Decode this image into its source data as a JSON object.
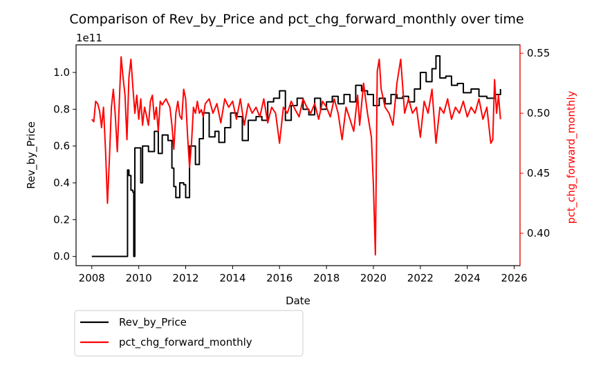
{
  "chart_data": {
    "type": "line",
    "title": "Comparison of Rev_by_Price and pct_chg_forward_monthly over time",
    "xlabel": "Date",
    "ylabel_left": "Rev_by_Price",
    "ylabel_right": "pct_chg_forward_monthly",
    "left_offset_text": "1e11",
    "xlim": [
      "2007-05-01",
      "2026-04-01"
    ],
    "ylim_left": [
      -0.05,
      1.15
    ],
    "ylim_right": [
      0.373,
      0.557
    ],
    "x_ticks": [
      "2008",
      "2010",
      "2012",
      "2014",
      "2016",
      "2018",
      "2020",
      "2022",
      "2024",
      "2026"
    ],
    "y_ticks_left": [
      "0.0",
      "0.2",
      "0.4",
      "0.6",
      "0.8",
      "1.0"
    ],
    "y_ticks_right": [
      "0.40",
      "0.45",
      "0.50",
      "0.55"
    ],
    "grid": false,
    "legend_position": "below-left",
    "series": [
      {
        "name": "Rev_by_Price",
        "axis": "left",
        "color": "#000000",
        "style": "steps",
        "points": [
          [
            "2008-01-01",
            0.0
          ],
          [
            "2009-07-01",
            0.0
          ],
          [
            "2009-07-10",
            0.47
          ],
          [
            "2009-08-01",
            0.44
          ],
          [
            "2009-09-01",
            0.36
          ],
          [
            "2009-10-01",
            0.35
          ],
          [
            "2009-10-15",
            0.0
          ],
          [
            "2009-11-01",
            0.59
          ],
          [
            "2010-01-01",
            0.59
          ],
          [
            "2010-02-01",
            0.4
          ],
          [
            "2010-03-01",
            0.6
          ],
          [
            "2010-06-01",
            0.57
          ],
          [
            "2010-09-01",
            0.68
          ],
          [
            "2010-11-01",
            0.56
          ],
          [
            "2011-01-01",
            0.66
          ],
          [
            "2011-04-01",
            0.63
          ],
          [
            "2011-06-01",
            0.48
          ],
          [
            "2011-07-01",
            0.38
          ],
          [
            "2011-08-01",
            0.32
          ],
          [
            "2011-10-01",
            0.4
          ],
          [
            "2011-12-01",
            0.39
          ],
          [
            "2012-01-01",
            0.32
          ],
          [
            "2012-03-01",
            0.6
          ],
          [
            "2012-06-01",
            0.5
          ],
          [
            "2012-08-01",
            0.64
          ],
          [
            "2012-10-01",
            0.78
          ],
          [
            "2013-01-01",
            0.65
          ],
          [
            "2013-04-01",
            0.68
          ],
          [
            "2013-06-01",
            0.62
          ],
          [
            "2013-09-01",
            0.7
          ],
          [
            "2013-12-01",
            0.78
          ],
          [
            "2014-03-01",
            0.76
          ],
          [
            "2014-06-01",
            0.63
          ],
          [
            "2014-09-01",
            0.74
          ],
          [
            "2015-01-01",
            0.76
          ],
          [
            "2015-04-01",
            0.74
          ],
          [
            "2015-07-01",
            0.84
          ],
          [
            "2015-10-01",
            0.86
          ],
          [
            "2016-01-01",
            0.9
          ],
          [
            "2016-04-01",
            0.74
          ],
          [
            "2016-07-01",
            0.82
          ],
          [
            "2016-10-01",
            0.86
          ],
          [
            "2017-01-01",
            0.8
          ],
          [
            "2017-04-01",
            0.77
          ],
          [
            "2017-07-01",
            0.86
          ],
          [
            "2017-10-01",
            0.8
          ],
          [
            "2018-01-01",
            0.84
          ],
          [
            "2018-04-01",
            0.87
          ],
          [
            "2018-07-01",
            0.83
          ],
          [
            "2018-10-01",
            0.88
          ],
          [
            "2019-01-01",
            0.84
          ],
          [
            "2019-04-01",
            0.93
          ],
          [
            "2019-07-01",
            0.9
          ],
          [
            "2019-10-01",
            0.88
          ],
          [
            "2020-01-01",
            0.82
          ],
          [
            "2020-04-01",
            0.86
          ],
          [
            "2020-07-01",
            0.83
          ],
          [
            "2020-10-01",
            0.88
          ],
          [
            "2021-01-01",
            0.86
          ],
          [
            "2021-04-01",
            0.87
          ],
          [
            "2021-07-01",
            0.84
          ],
          [
            "2021-10-01",
            0.91
          ],
          [
            "2022-01-01",
            1.0
          ],
          [
            "2022-04-01",
            0.95
          ],
          [
            "2022-07-01",
            1.02
          ],
          [
            "2022-09-01",
            1.09
          ],
          [
            "2022-11-01",
            0.97
          ],
          [
            "2023-02-01",
            0.98
          ],
          [
            "2023-05-01",
            0.93
          ],
          [
            "2023-08-01",
            0.94
          ],
          [
            "2023-11-01",
            0.89
          ],
          [
            "2024-03-01",
            0.91
          ],
          [
            "2024-07-01",
            0.87
          ],
          [
            "2024-11-01",
            0.86
          ],
          [
            "2025-03-01",
            0.88
          ],
          [
            "2025-06-01",
            0.91
          ]
        ]
      },
      {
        "name": "pct_chg_forward_monthly",
        "axis": "right",
        "color": "#ff0000",
        "style": "line",
        "points": [
          [
            "2008-01-01",
            0.495
          ],
          [
            "2008-02-01",
            0.493
          ],
          [
            "2008-03-01",
            0.51
          ],
          [
            "2008-04-01",
            0.508
          ],
          [
            "2008-05-01",
            0.502
          ],
          [
            "2008-06-01",
            0.488
          ],
          [
            "2008-07-01",
            0.505
          ],
          [
            "2008-08-01",
            0.47
          ],
          [
            "2008-09-01",
            0.425
          ],
          [
            "2008-10-01",
            0.462
          ],
          [
            "2008-11-01",
            0.505
          ],
          [
            "2008-12-01",
            0.52
          ],
          [
            "2009-01-01",
            0.498
          ],
          [
            "2009-02-01",
            0.468
          ],
          [
            "2009-03-01",
            0.505
          ],
          [
            "2009-04-01",
            0.547
          ],
          [
            "2009-05-01",
            0.53
          ],
          [
            "2009-06-01",
            0.515
          ],
          [
            "2009-07-01",
            0.478
          ],
          [
            "2009-08-01",
            0.53
          ],
          [
            "2009-09-01",
            0.545
          ],
          [
            "2009-10-01",
            0.522
          ],
          [
            "2009-11-01",
            0.5
          ],
          [
            "2009-12-01",
            0.515
          ],
          [
            "2010-01-01",
            0.495
          ],
          [
            "2010-02-01",
            0.512
          ],
          [
            "2010-03-01",
            0.49
          ],
          [
            "2010-04-01",
            0.505
          ],
          [
            "2010-05-01",
            0.498
          ],
          [
            "2010-06-01",
            0.49
          ],
          [
            "2010-07-01",
            0.51
          ],
          [
            "2010-08-01",
            0.515
          ],
          [
            "2010-09-01",
            0.495
          ],
          [
            "2010-10-01",
            0.505
          ],
          [
            "2010-11-01",
            0.485
          ],
          [
            "2010-12-01",
            0.51
          ],
          [
            "2011-01-01",
            0.507
          ],
          [
            "2011-03-01",
            0.512
          ],
          [
            "2011-05-01",
            0.505
          ],
          [
            "2011-06-01",
            0.49
          ],
          [
            "2011-07-01",
            0.47
          ],
          [
            "2011-08-01",
            0.5
          ],
          [
            "2011-09-01",
            0.51
          ],
          [
            "2011-10-01",
            0.498
          ],
          [
            "2011-11-01",
            0.495
          ],
          [
            "2011-12-01",
            0.52
          ],
          [
            "2012-01-01",
            0.512
          ],
          [
            "2012-02-01",
            0.48
          ],
          [
            "2012-03-01",
            0.455
          ],
          [
            "2012-04-01",
            0.475
          ],
          [
            "2012-05-01",
            0.505
          ],
          [
            "2012-06-01",
            0.5
          ],
          [
            "2012-07-01",
            0.51
          ],
          [
            "2012-08-01",
            0.5
          ],
          [
            "2012-09-01",
            0.503
          ],
          [
            "2012-10-01",
            0.497
          ],
          [
            "2012-11-01",
            0.508
          ],
          [
            "2013-01-01",
            0.512
          ],
          [
            "2013-03-01",
            0.5
          ],
          [
            "2013-05-01",
            0.508
          ],
          [
            "2013-07-01",
            0.492
          ],
          [
            "2013-09-01",
            0.512
          ],
          [
            "2013-11-01",
            0.505
          ],
          [
            "2014-01-01",
            0.51
          ],
          [
            "2014-03-01",
            0.495
          ],
          [
            "2014-05-01",
            0.512
          ],
          [
            "2014-07-01",
            0.49
          ],
          [
            "2014-09-01",
            0.508
          ],
          [
            "2014-11-01",
            0.5
          ],
          [
            "2015-01-01",
            0.505
          ],
          [
            "2015-03-01",
            0.497
          ],
          [
            "2015-05-01",
            0.512
          ],
          [
            "2015-07-01",
            0.492
          ],
          [
            "2015-09-01",
            0.505
          ],
          [
            "2015-11-01",
            0.5
          ],
          [
            "2016-01-01",
            0.475
          ],
          [
            "2016-03-01",
            0.505
          ],
          [
            "2016-05-01",
            0.5
          ],
          [
            "2016-07-01",
            0.51
          ],
          [
            "2016-09-01",
            0.503
          ],
          [
            "2016-11-01",
            0.497
          ],
          [
            "2017-01-01",
            0.512
          ],
          [
            "2017-03-01",
            0.505
          ],
          [
            "2017-05-01",
            0.5
          ],
          [
            "2017-07-01",
            0.508
          ],
          [
            "2017-09-01",
            0.495
          ],
          [
            "2017-11-01",
            0.51
          ],
          [
            "2018-01-01",
            0.505
          ],
          [
            "2018-03-01",
            0.497
          ],
          [
            "2018-05-01",
            0.512
          ],
          [
            "2018-07-01",
            0.5
          ],
          [
            "2018-09-01",
            0.478
          ],
          [
            "2018-11-01",
            0.505
          ],
          [
            "2019-01-01",
            0.495
          ],
          [
            "2019-03-01",
            0.485
          ],
          [
            "2019-05-01",
            0.515
          ],
          [
            "2019-06-01",
            0.49
          ],
          [
            "2019-08-01",
            0.525
          ],
          [
            "2019-10-01",
            0.5
          ],
          [
            "2019-12-01",
            0.48
          ],
          [
            "2020-01-01",
            0.44
          ],
          [
            "2020-02-01",
            0.382
          ],
          [
            "2020-03-01",
            0.535
          ],
          [
            "2020-04-01",
            0.545
          ],
          [
            "2020-05-01",
            0.52
          ],
          [
            "2020-07-01",
            0.505
          ],
          [
            "2020-09-01",
            0.5
          ],
          [
            "2020-11-01",
            0.49
          ],
          [
            "2021-01-01",
            0.525
          ],
          [
            "2021-03-01",
            0.545
          ],
          [
            "2021-05-01",
            0.5
          ],
          [
            "2021-07-01",
            0.512
          ],
          [
            "2021-09-01",
            0.5
          ],
          [
            "2021-11-01",
            0.505
          ],
          [
            "2022-01-01",
            0.48
          ],
          [
            "2022-03-01",
            0.51
          ],
          [
            "2022-05-01",
            0.5
          ],
          [
            "2022-07-01",
            0.52
          ],
          [
            "2022-09-01",
            0.475
          ],
          [
            "2022-11-01",
            0.505
          ],
          [
            "2023-01-01",
            0.5
          ],
          [
            "2023-03-01",
            0.512
          ],
          [
            "2023-05-01",
            0.495
          ],
          [
            "2023-07-01",
            0.505
          ],
          [
            "2023-09-01",
            0.5
          ],
          [
            "2023-11-01",
            0.51
          ],
          [
            "2024-01-01",
            0.497
          ],
          [
            "2024-03-01",
            0.505
          ],
          [
            "2024-05-01",
            0.5
          ],
          [
            "2024-07-01",
            0.512
          ],
          [
            "2024-09-01",
            0.495
          ],
          [
            "2024-11-01",
            0.505
          ],
          [
            "2025-01-01",
            0.475
          ],
          [
            "2025-02-01",
            0.478
          ],
          [
            "2025-03-01",
            0.528
          ],
          [
            "2025-04-01",
            0.5
          ],
          [
            "2025-05-01",
            0.515
          ],
          [
            "2025-06-01",
            0.495
          ]
        ]
      }
    ]
  }
}
